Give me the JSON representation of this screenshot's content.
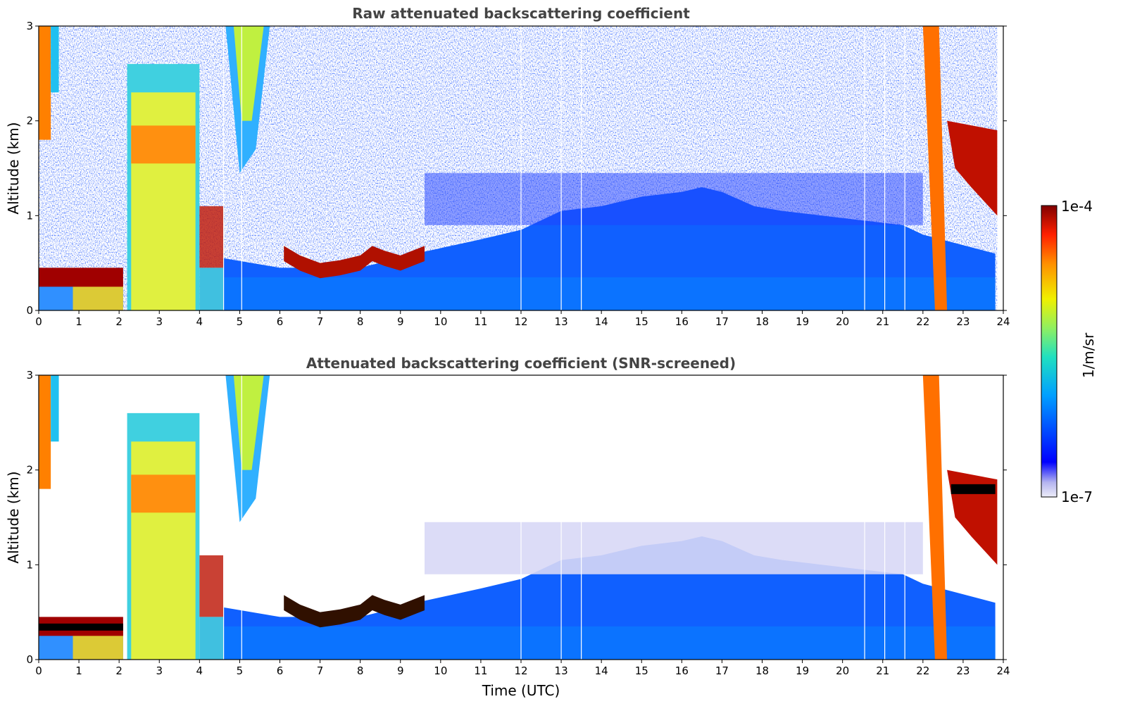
{
  "chart_data": [
    {
      "type": "heatmap",
      "title": "Raw attenuated backscattering coefficient",
      "xlabel": "",
      "ylabel": "Altitude (km)",
      "xlim": [
        0,
        24
      ],
      "ylim": [
        0,
        3
      ],
      "xticks": [
        "0",
        "1",
        "2",
        "3",
        "4",
        "5",
        "6",
        "7",
        "8",
        "9",
        "10",
        "11",
        "12",
        "13",
        "14",
        "15",
        "16",
        "17",
        "18",
        "19",
        "20",
        "21",
        "22",
        "23",
        "24"
      ],
      "yticks": [
        "0",
        "1",
        "2",
        "3"
      ],
      "screened": false
    },
    {
      "type": "heatmap",
      "title": "Attenuated backscattering coefficient (SNR-screened)",
      "xlabel": "Time (UTC)",
      "ylabel": "Altitude (km)",
      "xlim": [
        0,
        24
      ],
      "ylim": [
        0,
        3
      ],
      "xticks": [
        "0",
        "1",
        "2",
        "3",
        "4",
        "5",
        "6",
        "7",
        "8",
        "9",
        "10",
        "11",
        "12",
        "13",
        "14",
        "15",
        "16",
        "17",
        "18",
        "19",
        "20",
        "21",
        "22",
        "23",
        "24"
      ],
      "yticks": [
        "0",
        "1",
        "2",
        "3"
      ],
      "screened": true
    }
  ],
  "colorbar": {
    "label": "1/m/sr",
    "max_label": "1e-4",
    "min_label": "1e-7",
    "colormap": "jet",
    "scale": "log"
  },
  "features": {
    "gaps_utc": [
      12.0,
      13.0,
      13.5,
      20.55,
      21.05,
      21.55
    ],
    "clouds": [
      {
        "t0": 0.0,
        "t1": 2.1,
        "alt_km": 0.35,
        "note": "low cloud layer"
      },
      {
        "t0": 2.2,
        "t1": 4.0,
        "alt_km": 1.75,
        "note": "thick cloud / rain"
      },
      {
        "t0": 4.6,
        "t1": 5.7,
        "alt_km": 2.3,
        "note": "high cloud"
      },
      {
        "t0": 6.1,
        "t1": 9.6,
        "alt_km": 0.5,
        "note": "stratocumulus top"
      },
      {
        "t0": 22.0,
        "t1": 23.9,
        "alt_km": 1.7,
        "note": "cloud layer"
      }
    ]
  },
  "colors": {
    "title": "#444444",
    "jet_low": "#0000ff",
    "jet_high": "#800000"
  }
}
